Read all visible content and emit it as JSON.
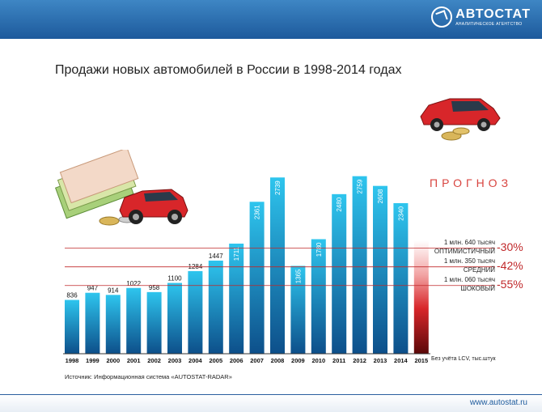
{
  "header": {
    "logo_name": "АВТОСТАТ",
    "logo_sub": "АНАЛИТИЧЕСКОЕ АГЕНТСТВО"
  },
  "title": "Продажи новых автомобилей в России в 1998-2014 годах",
  "source": "Источник: Информационная система «AUTOSTAT-RADAR»",
  "footer_url": "www.autostat.ru",
  "note": "Без учёта LCV, тыс.штук",
  "colors": {
    "bar_top": "#2ec5ee",
    "bar_bottom": "#0d4f8a",
    "forecast": "#c0282a",
    "header": "#1d5a9c"
  },
  "forecast": {
    "title": "ПРОГНОЗ",
    "scenarios": [
      {
        "value_text": "1 млн. 640 тысяч",
        "name": "ОПТИМИСТИЧНЫЙ",
        "percent": "-30%",
        "value": 1640
      },
      {
        "value_text": "1 млн. 350 тысяч",
        "name": "СРЕДНИЙ",
        "percent": "-42%",
        "value": 1350
      },
      {
        "value_text": "1 млн. 060 тысяч",
        "name": "ШОКОВЫЙ",
        "percent": "-55%",
        "value": 1060
      }
    ]
  },
  "chart_data": {
    "type": "bar",
    "categories": [
      "1998",
      "1999",
      "2000",
      "2001",
      "2002",
      "2003",
      "2004",
      "2005",
      "2006",
      "2007",
      "2008",
      "2009",
      "2010",
      "2011",
      "2012",
      "2013",
      "2014",
      "2015"
    ],
    "values": [
      836,
      947,
      914,
      1022,
      958,
      1100,
      1284,
      1447,
      1711,
      2361,
      2739,
      1365,
      1780,
      2480,
      2759,
      2608,
      2340,
      null
    ],
    "labels_inside": [
      false,
      false,
      false,
      false,
      false,
      false,
      false,
      false,
      true,
      true,
      true,
      true,
      true,
      true,
      true,
      true,
      true,
      false
    ],
    "title": "Продажи новых автомобилей в России в 1998-2014 годах",
    "xlabel": "",
    "ylabel": "",
    "unit_note": "Без учёта LCV, тыс.штук",
    "forecast_category": "2015",
    "forecast_range": [
      1060,
      1640
    ]
  }
}
